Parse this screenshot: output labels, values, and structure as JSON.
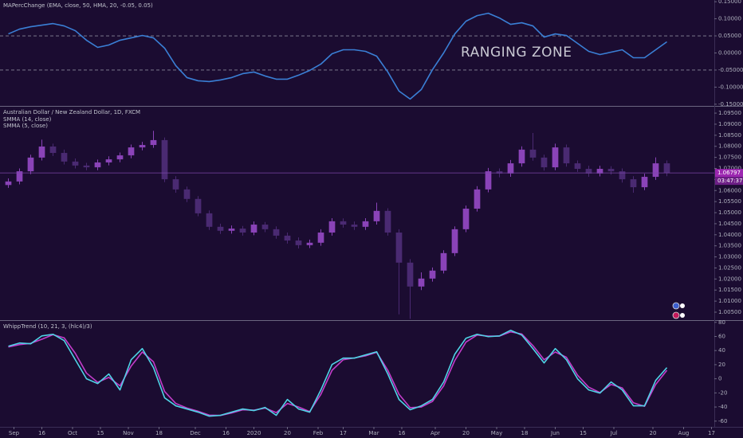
{
  "chart_data": [
    {
      "type": "line",
      "title": "MAPercChange (EMA, close, 50, HMA, 20, -0.05, 0.05)",
      "annotation": "RANGING ZONE",
      "x": [
        3,
        7,
        11,
        15,
        19,
        23,
        27,
        31,
        35,
        39,
        43,
        47,
        51,
        55,
        59,
        63,
        67,
        71,
        75,
        79,
        83,
        87,
        91,
        95,
        99,
        103,
        107,
        111,
        115,
        119,
        123,
        127,
        131,
        135,
        139,
        143,
        147,
        151,
        155,
        159,
        163,
        167,
        171,
        175,
        179,
        183,
        187,
        191,
        195,
        199,
        203,
        207,
        211,
        215,
        219,
        223,
        227,
        231,
        235,
        239
      ],
      "values": [
        0.0558,
        0.0698,
        0.0767,
        0.0814,
        0.086,
        0.0791,
        0.0651,
        0.0372,
        0.0163,
        0.0233,
        0.0372,
        0.0442,
        0.0512,
        0.0442,
        0.014,
        -0.0372,
        -0.0721,
        -0.0814,
        -0.0837,
        -0.0791,
        -0.0721,
        -0.0605,
        -0.0558,
        -0.0674,
        -0.0767,
        -0.0767,
        -0.0651,
        -0.0512,
        -0.0326,
        -0.0023,
        0.0093,
        0.0093,
        0.0047,
        -0.0093,
        -0.0558,
        -0.1116,
        -0.1349,
        -0.107,
        -0.0488,
        0,
        0.0558,
        0.093,
        0.1093,
        0.1163,
        0.1023,
        0.0837,
        0.0884,
        0.0791,
        0.0465,
        0.0558,
        0.0512,
        0.0279,
        0.0047,
        -0.0047,
        0.0023,
        0.0093,
        -0.014,
        -0.014,
        0.0093,
        0.0326
      ],
      "color": "#3a7fd5",
      "levels": [
        0.05,
        -0.05
      ],
      "xlim": [
        0,
        256
      ],
      "ylim": [
        -0.155,
        0.155
      ],
      "yticks": [
        {
          "value": 0.15,
          "label": "0.15000"
        },
        {
          "value": 0.1,
          "label": "0.10000"
        },
        {
          "value": 0.05,
          "label": "0.05000"
        },
        {
          "value": 0,
          "label": "0.00000"
        },
        {
          "value": -0.05,
          "label": "-0.05000"
        },
        {
          "value": -0.1,
          "label": "-0.10000"
        },
        {
          "value": -0.15,
          "label": "-0.15000"
        }
      ]
    },
    {
      "type": "candlestick",
      "title": "Australian Dollar / New Zealand Dollar, 1D, FXCM",
      "legend_items": [
        "SMMA (14, close)",
        "SMMA (5, close)"
      ],
      "countdown": "03:47:37",
      "x": [
        3,
        7,
        11,
        15,
        19,
        23,
        27,
        31,
        35,
        39,
        43,
        47,
        51,
        55,
        59,
        63,
        67,
        71,
        75,
        79,
        83,
        87,
        91,
        95,
        99,
        103,
        107,
        111,
        115,
        119,
        123,
        127,
        131,
        135,
        139,
        143,
        147,
        151,
        155,
        159,
        163,
        167,
        171,
        175,
        179,
        183,
        187,
        191,
        195,
        199,
        203,
        207,
        211,
        215,
        219,
        223,
        227,
        231,
        235,
        239
      ],
      "open": [
        1.0625,
        1.0641,
        1.0687,
        1.0749,
        1.0799,
        1.077,
        1.0731,
        1.0713,
        1.0705,
        1.0727,
        1.0741,
        1.0759,
        1.0795,
        1.0806,
        1.0828,
        1.0651,
        1.0605,
        1.0562,
        1.0497,
        1.0436,
        1.0418,
        1.0428,
        1.041,
        1.0446,
        1.0425,
        1.0396,
        1.0374,
        1.0353,
        1.0364,
        1.041,
        1.0461,
        1.0446,
        1.0436,
        1.0461,
        1.0508,
        1.041,
        1.0274,
        1.0166,
        1.0202,
        1.0238,
        1.0317,
        1.0425,
        1.0518,
        1.0605,
        1.0687,
        1.0677,
        1.0723,
        1.0785,
        1.0749,
        1.0705,
        1.0795,
        1.0723,
        1.0698,
        1.0677,
        1.0698,
        1.0687,
        1.0651,
        1.0615,
        1.0662,
        1.0723
      ],
      "high": [
        1.0655,
        1.07,
        1.0762,
        1.083,
        1.0812,
        1.0785,
        1.0745,
        1.0725,
        1.074,
        1.0755,
        1.0772,
        1.0808,
        1.082,
        1.087,
        1.084,
        1.0665,
        1.0618,
        1.0575,
        1.051,
        1.045,
        1.0442,
        1.044,
        1.046,
        1.0458,
        1.0438,
        1.041,
        1.0388,
        1.0378,
        1.0425,
        1.0475,
        1.0474,
        1.046,
        1.0475,
        1.0545,
        1.052,
        1.0425,
        1.029,
        1.023,
        1.0252,
        1.033,
        1.0438,
        1.0532,
        1.062,
        1.0702,
        1.07,
        1.0738,
        1.08,
        1.086,
        1.0762,
        1.0812,
        1.0808,
        1.0736,
        1.0712,
        1.0712,
        1.071,
        1.07,
        1.0665,
        1.0676,
        1.075,
        1.0736
      ],
      "low": [
        1.0612,
        1.0628,
        1.0674,
        1.0736,
        1.0756,
        1.0718,
        1.07,
        1.0692,
        1.0692,
        1.0714,
        1.0728,
        1.0746,
        1.0782,
        1.0793,
        1.0638,
        1.059,
        1.0548,
        1.0484,
        1.0422,
        1.0404,
        1.0405,
        1.0396,
        1.0398,
        1.0412,
        1.0382,
        1.036,
        1.0338,
        1.034,
        1.035,
        1.0396,
        1.0432,
        1.0422,
        1.0422,
        1.0446,
        1.0396,
        1.004,
        1.002,
        1.015,
        1.0188,
        1.0225,
        1.0304,
        1.0412,
        1.0505,
        1.0592,
        1.066,
        1.0662,
        1.0708,
        1.0735,
        1.069,
        1.0692,
        1.0708,
        1.0684,
        1.0662,
        1.0664,
        1.0672,
        1.0636,
        1.059,
        1.0602,
        1.0648,
        1.0665
      ],
      "close": [
        1.0641,
        1.0687,
        1.0749,
        1.0799,
        1.077,
        1.0731,
        1.0713,
        1.0705,
        1.0727,
        1.0741,
        1.0759,
        1.0795,
        1.0806,
        1.0828,
        1.0651,
        1.0605,
        1.0562,
        1.0497,
        1.0436,
        1.0418,
        1.0428,
        1.041,
        1.0446,
        1.0425,
        1.0396,
        1.0374,
        1.0353,
        1.0364,
        1.041,
        1.0461,
        1.0446,
        1.0436,
        1.0461,
        1.0508,
        1.041,
        1.0274,
        1.0166,
        1.0202,
        1.0238,
        1.0317,
        1.0425,
        1.0518,
        1.0605,
        1.0687,
        1.0677,
        1.0723,
        1.0785,
        1.0749,
        1.0705,
        1.0795,
        1.0723,
        1.0698,
        1.0677,
        1.0698,
        1.0687,
        1.0651,
        1.0615,
        1.0662,
        1.0723,
        1.06797
      ],
      "up_color": "#8a43b8",
      "down_color": "#4a2a72",
      "xlim": [
        0,
        256
      ],
      "ylim": [
        1.0014,
        1.0979
      ],
      "yticks": [
        {
          "value": 1.095,
          "label": "1.09500"
        },
        {
          "value": 1.09,
          "label": "1.09000"
        },
        {
          "value": 1.085,
          "label": "1.08500"
        },
        {
          "value": 1.08,
          "label": "1.08000"
        },
        {
          "value": 1.075,
          "label": "1.07500"
        },
        {
          "value": 1.07,
          "label": "1.07000"
        },
        {
          "value": 1.065,
          "label": "1.06500"
        },
        {
          "value": 1.06,
          "label": "1.06000"
        },
        {
          "value": 1.055,
          "label": "1.05500"
        },
        {
          "value": 1.05,
          "label": "1.05000"
        },
        {
          "value": 1.045,
          "label": "1.04500"
        },
        {
          "value": 1.04,
          "label": "1.04000"
        },
        {
          "value": 1.035,
          "label": "1.03500"
        },
        {
          "value": 1.03,
          "label": "1.03000"
        },
        {
          "value": 1.025,
          "label": "1.02500"
        },
        {
          "value": 1.02,
          "label": "1.02000"
        },
        {
          "value": 1.015,
          "label": "1.01500"
        },
        {
          "value": 1.01,
          "label": "1.01000"
        },
        {
          "value": 1.005,
          "label": "1.00500"
        }
      ]
    },
    {
      "type": "line",
      "title": "WhippTrend (10, 21, 3, (hlc4)/3)",
      "x": [
        3,
        7,
        11,
        15,
        19,
        23,
        27,
        31,
        35,
        39,
        43,
        47,
        51,
        55,
        59,
        63,
        67,
        71,
        75,
        79,
        83,
        87,
        91,
        95,
        99,
        103,
        107,
        111,
        115,
        119,
        123,
        127,
        131,
        135,
        139,
        143,
        147,
        151,
        155,
        159,
        163,
        167,
        171,
        175,
        179,
        183,
        187,
        191,
        195,
        199,
        203,
        207,
        211,
        215,
        219,
        223,
        227,
        231,
        235,
        239
      ],
      "series": [
        {
          "color": "#c23dc9",
          "values": [
            45,
            48.5,
            50.2,
            56,
            62.5,
            58,
            36,
            8,
            -5,
            2,
            -10,
            18,
            38,
            24,
            -18,
            -35,
            -41.5,
            -46,
            -51.5,
            -52,
            -48.5,
            -44,
            -44.5,
            -41.5,
            -48,
            -35,
            -40,
            -46.5,
            -22,
            12,
            27,
            29.5,
            32.5,
            37.5,
            12,
            -22,
            -41,
            -40,
            -32,
            -10,
            26,
            52,
            62,
            60.5,
            60.5,
            66.5,
            63.5,
            47,
            27,
            38,
            30.5,
            5,
            -12,
            -19.5,
            -8,
            -13,
            -34,
            -39,
            -8,
            12
          ]
        },
        {
          "color": "#4fd3e6",
          "values": [
            46.2,
            50.7,
            49.6,
            60.8,
            63.1,
            54.1,
            27,
            0,
            -6.8,
            6.8,
            -15.8,
            27,
            42.8,
            15.8,
            -27,
            -38.3,
            -42.8,
            -47.3,
            -53,
            -51.8,
            -47.3,
            -42.8,
            -45.1,
            -40.6,
            -51.8,
            -29.3,
            -42.8,
            -47.3,
            -15.8,
            20.3,
            29.3,
            29.3,
            33.8,
            38.3,
            6.8,
            -29.3,
            -43.9,
            -38.3,
            -29.3,
            -4.5,
            34.9,
            57.5,
            63.1,
            59.7,
            60.8,
            68.7,
            62,
            42.8,
            22.5,
            42.8,
            27,
            0,
            -15.8,
            -20.3,
            -4.5,
            -15.8,
            -38.3,
            -38.3,
            -2.3,
            15.8
          ]
        }
      ],
      "xlim": [
        0,
        256
      ],
      "ylim": [
        -67,
        82
      ],
      "yticks": [
        80,
        60,
        40,
        20,
        0,
        -20,
        -40,
        -60
      ],
      "xticks": [
        {
          "value": 5,
          "label": "Sep"
        },
        {
          "value": 15,
          "label": "16"
        },
        {
          "value": 26,
          "label": "Oct"
        },
        {
          "value": 36,
          "label": "15"
        },
        {
          "value": 46,
          "label": "Nov"
        },
        {
          "value": 57,
          "label": "18"
        },
        {
          "value": 70,
          "label": "Dec"
        },
        {
          "value": 81,
          "label": "16"
        },
        {
          "value": 91,
          "label": "2020"
        },
        {
          "value": 103,
          "label": "20"
        },
        {
          "value": 114,
          "label": "Feb"
        },
        {
          "value": 123,
          "label": "17"
        },
        {
          "value": 134,
          "label": "Mar"
        },
        {
          "value": 144,
          "label": "16"
        },
        {
          "value": 156,
          "label": "Apr"
        },
        {
          "value": 167,
          "label": "20"
        },
        {
          "value": 178,
          "label": "May"
        },
        {
          "value": 188,
          "label": "18"
        },
        {
          "value": 199,
          "label": "Jun"
        },
        {
          "value": 209,
          "label": "15"
        },
        {
          "value": 220,
          "label": "Jul"
        },
        {
          "value": 234,
          "label": "20"
        },
        {
          "value": 245,
          "label": "Aug"
        },
        {
          "value": 255,
          "label": "17"
        }
      ]
    }
  ]
}
